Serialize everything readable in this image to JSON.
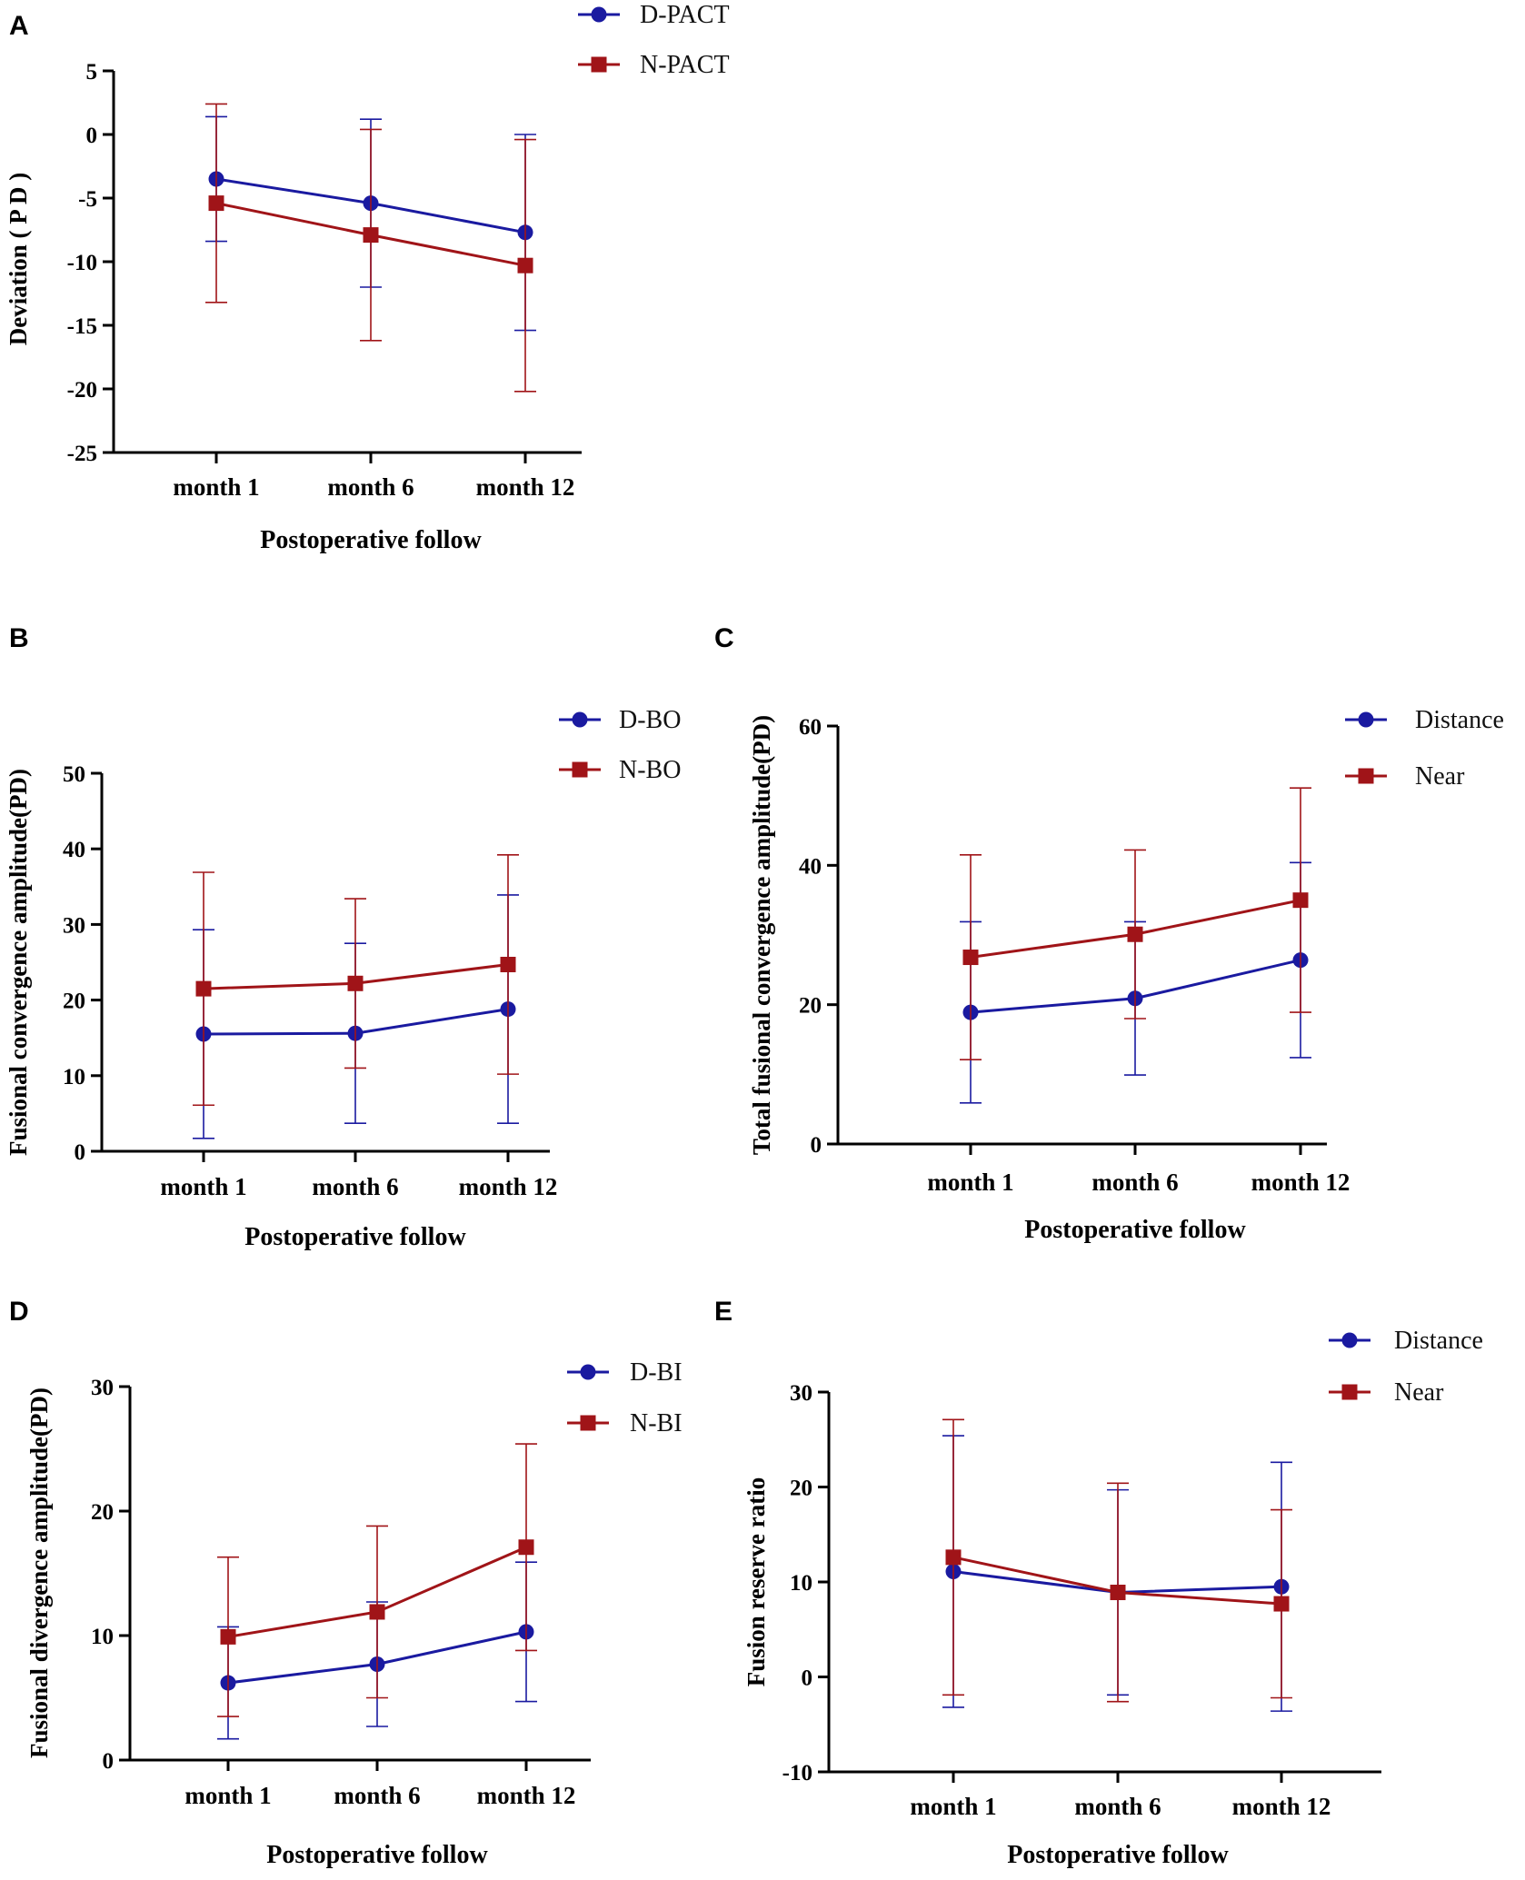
{
  "colors": {
    "blue": "#1a1aa0",
    "red": "#a01418",
    "axis": "#000000"
  },
  "chart_data": [
    {
      "id": "A",
      "type": "line",
      "panel_label": "A",
      "categories": [
        "month 1",
        "month 6",
        "month 12"
      ],
      "xlabel": "Postoperative follow",
      "ylabel": "Deviation ( P D )",
      "ylim": [
        -25,
        5
      ],
      "yticks": [
        5,
        0,
        -5,
        -10,
        -15,
        -20,
        -25
      ],
      "series": [
        {
          "name": "D-PACT",
          "color": "#1a1aa0",
          "marker": "circle",
          "values": [
            -3.5,
            -5.4,
            -7.7
          ],
          "err": [
            4.9,
            6.6,
            7.7
          ]
        },
        {
          "name": "N-PACT",
          "color": "#a01418",
          "marker": "square",
          "values": [
            -5.4,
            -7.9,
            -10.3
          ],
          "err": [
            7.8,
            8.3,
            9.9
          ]
        }
      ]
    },
    {
      "id": "B",
      "type": "line",
      "panel_label": "B",
      "categories": [
        "month 1",
        "month 6",
        "month 12"
      ],
      "xlabel": "Postoperative follow",
      "ylabel": "Fusional convergence amplitude(PD)",
      "ylim": [
        0,
        50
      ],
      "yticks": [
        50,
        40,
        30,
        20,
        10,
        0
      ],
      "series": [
        {
          "name": "D-BO",
          "color": "#1a1aa0",
          "marker": "circle",
          "values": [
            15.5,
            15.6,
            18.8
          ],
          "err": [
            13.8,
            11.9,
            15.1
          ]
        },
        {
          "name": "N-BO",
          "color": "#a01418",
          "marker": "square",
          "values": [
            21.5,
            22.2,
            24.7
          ],
          "err": [
            15.4,
            11.2,
            14.5
          ]
        }
      ]
    },
    {
      "id": "C",
      "type": "line",
      "panel_label": "C",
      "categories": [
        "month 1",
        "month 6",
        "month 12"
      ],
      "xlabel": "Postoperative follow",
      "ylabel": "Total fusional convergence amplitude(PD)",
      "ylim": [
        0,
        60
      ],
      "yticks": [
        60,
        40,
        20,
        0
      ],
      "series": [
        {
          "name": "Distance",
          "color": "#1a1aa0",
          "marker": "circle",
          "values": [
            18.9,
            20.9,
            26.4
          ],
          "err": [
            13.0,
            11.0,
            14.0
          ]
        },
        {
          "name": "Near",
          "color": "#a01418",
          "marker": "square",
          "values": [
            26.8,
            30.1,
            35.0
          ],
          "err": [
            14.7,
            12.1,
            16.1
          ]
        }
      ]
    },
    {
      "id": "D",
      "type": "line",
      "panel_label": "D",
      "categories": [
        "month 1",
        "month 6",
        "month 12"
      ],
      "xlabel": "Postoperative follow",
      "ylabel": "Fusional divergence amplitude(PD)",
      "ylim": [
        0,
        30
      ],
      "yticks": [
        30,
        20,
        10,
        0
      ],
      "series": [
        {
          "name": "D-BI",
          "color": "#1a1aa0",
          "marker": "circle",
          "values": [
            6.2,
            7.7,
            10.3
          ],
          "err": [
            4.5,
            5.0,
            5.6
          ]
        },
        {
          "name": "N-BI",
          "color": "#a01418",
          "marker": "square",
          "values": [
            9.9,
            11.9,
            17.1
          ],
          "err": [
            6.4,
            6.9,
            8.3
          ]
        }
      ]
    },
    {
      "id": "E",
      "type": "line",
      "panel_label": "E",
      "categories": [
        "month 1",
        "month 6",
        "month 12"
      ],
      "xlabel": "Postoperative follow",
      "ylabel": "Fusion reserve ratio",
      "ylim": [
        -10,
        30
      ],
      "yticks": [
        30,
        20,
        10,
        0,
        -10
      ],
      "series": [
        {
          "name": "Distance",
          "color": "#1a1aa0",
          "marker": "circle",
          "values": [
            11.1,
            8.9,
            9.5
          ],
          "err": [
            14.3,
            10.8,
            13.1
          ]
        },
        {
          "name": "Near",
          "color": "#a01418",
          "marker": "square",
          "values": [
            12.6,
            8.9,
            7.7
          ],
          "err": [
            14.5,
            11.5,
            9.9
          ]
        }
      ]
    }
  ]
}
